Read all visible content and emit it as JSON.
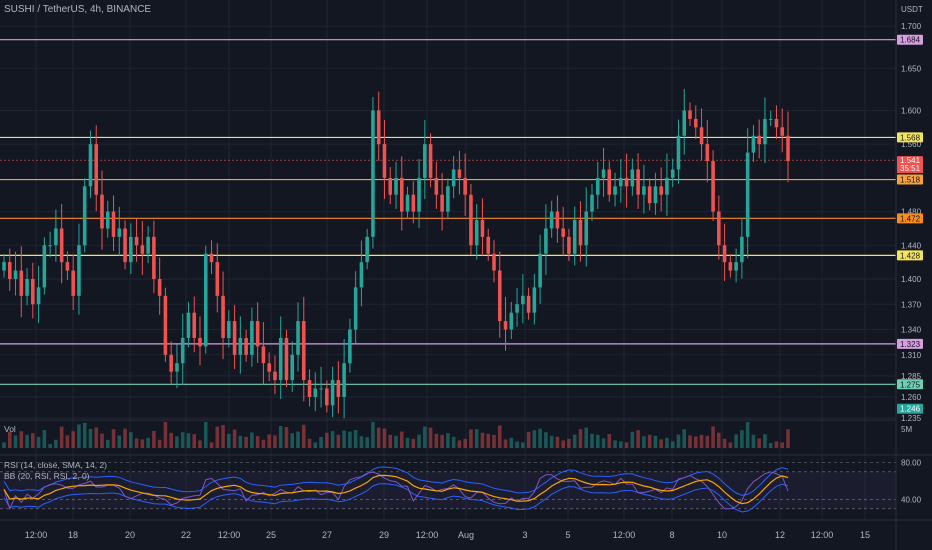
{
  "header": {
    "title": "SUSHI / TetherUS, 4h, BINANCE"
  },
  "colors": {
    "bg": "#131722",
    "up": "#26a69a",
    "down": "#ef5350",
    "grid": "#1f2433"
  },
  "chart_data": {
    "type": "candlestick",
    "symbol": "SUSHI / TetherUS",
    "interval": "4h",
    "exchange": "BINANCE",
    "currency": "USDT",
    "ylim": [
      1.235,
      1.705
    ],
    "y_ticks": [
      "1.700",
      "1.650",
      "1.600",
      "1.560",
      "1.480",
      "1.440",
      "1.400",
      "1.370",
      "1.340",
      "1.310",
      "1.285",
      "1.260",
      "1.235"
    ],
    "x_ticks": [
      "12:00",
      "18",
      "20",
      "22",
      "12:00",
      "25",
      "27",
      "29",
      "12:00",
      "Aug",
      "3",
      "5",
      "12:00",
      "8",
      "10",
      "12",
      "12:00",
      "15"
    ],
    "horizontal_lines": [
      {
        "price": 1.684,
        "label": "1.684",
        "color": "#d49fdc"
      },
      {
        "price": 1.568,
        "label": "1.568",
        "color": "#f2e45c"
      },
      {
        "price": 1.518,
        "label": "1.518",
        "color": "#f7a136"
      },
      {
        "price": 1.472,
        "label": "1.472",
        "color": "#f98c1a"
      },
      {
        "price": 1.428,
        "label": "1.428",
        "color": "#f2e45c"
      },
      {
        "price": 1.323,
        "label": "1.323",
        "color": "#d49fdc"
      },
      {
        "price": 1.275,
        "label": "1.275",
        "color": "#6fcfb3"
      }
    ],
    "last_price": {
      "value": 1.541,
      "label": "1.541",
      "countdown": "35:51"
    },
    "other_price_labels": [
      {
        "price": 1.246,
        "label": "1.246"
      }
    ],
    "close_prices": [
      1.42,
      1.4,
      1.41,
      1.38,
      1.4,
      1.37,
      1.39,
      1.44,
      1.44,
      1.46,
      1.42,
      1.41,
      1.38,
      1.44,
      1.51,
      1.56,
      1.5,
      1.46,
      1.48,
      1.45,
      1.46,
      1.42,
      1.45,
      1.44,
      1.43,
      1.45,
      1.4,
      1.38,
      1.31,
      1.29,
      1.3,
      1.33,
      1.36,
      1.33,
      1.32,
      1.43,
      1.42,
      1.38,
      1.33,
      1.35,
      1.31,
      1.33,
      1.31,
      1.35,
      1.32,
      1.3,
      1.29,
      1.28,
      1.33,
      1.28,
      1.31,
      1.35,
      1.28,
      1.26,
      1.27,
      1.27,
      1.25,
      1.28,
      1.26,
      1.3,
      1.34,
      1.39,
      1.42,
      1.45,
      1.6,
      1.56,
      1.52,
      1.5,
      1.52,
      1.48,
      1.5,
      1.48,
      1.52,
      1.56,
      1.52,
      1.5,
      1.48,
      1.51,
      1.53,
      1.52,
      1.5,
      1.44,
      1.47,
      1.45,
      1.43,
      1.41,
      1.35,
      1.34,
      1.36,
      1.37,
      1.38,
      1.36,
      1.39,
      1.43,
      1.46,
      1.48,
      1.46,
      1.45,
      1.43,
      1.47,
      1.44,
      1.48,
      1.5,
      1.52,
      1.53,
      1.5,
      1.51,
      1.52,
      1.51,
      1.53,
      1.5,
      1.51,
      1.49,
      1.51,
      1.5,
      1.52,
      1.53,
      1.57,
      1.6,
      1.59,
      1.58,
      1.56,
      1.54,
      1.48,
      1.44,
      1.42,
      1.41,
      1.42,
      1.45,
      1.55,
      1.57,
      1.56,
      1.59,
      1.59,
      1.58,
      1.57,
      1.54
    ],
    "volume_label": "Vol",
    "volume_scale": "5M",
    "rsi": {
      "label": "RSI (14, close, SMA, 14, 2)",
      "bb_label": "BB (20, RSI, RSI, 2, 0)",
      "levels": [
        "80.00",
        "40.00"
      ],
      "ylim": [
        20,
        85
      ]
    }
  }
}
